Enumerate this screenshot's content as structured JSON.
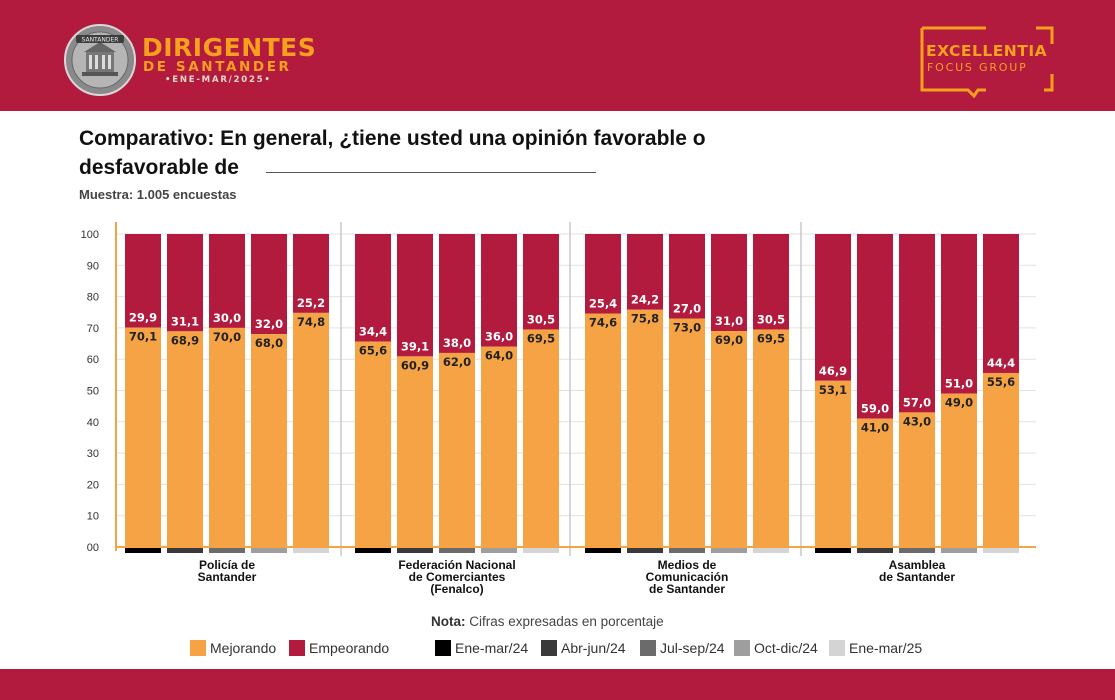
{
  "header": {
    "seal_text": "SANTANDER",
    "brand_line1": "DIRIGENTES",
    "brand_line2": "DE SANTANDER",
    "brand_line3": "•ENE-MAR/2025•",
    "partner_line1": "EXCELLENTIA",
    "partner_line2": "FOCUS GROUP"
  },
  "title": "Comparativo: En general, ¿tiene usted una opinión favorable o desfavorable de",
  "sample": "Muestra: 1.005 encuestas",
  "note_label": "Nota:",
  "note_text": "Cifras expresadas en porcentaje",
  "legend": {
    "mejorando": "Mejorando",
    "empeorando": "Empeorando",
    "periods": [
      "Ene-mar/24",
      "Abr-jun/24",
      "Jul-sep/24",
      "Oct-dic/24",
      "Ene-mar/25"
    ]
  },
  "colors": {
    "mejorando": "#f5a344",
    "empeorando": "#b21b3e",
    "header": "#b21b3e",
    "accent": "#f7a01e",
    "periods": [
      "#000000",
      "#3a3a3a",
      "#6b6b6b",
      "#9e9e9e",
      "#d4d4d4"
    ]
  },
  "chart_data": {
    "type": "bar",
    "stacked": true,
    "ylim": [
      0,
      100
    ],
    "y_ticks": [
      "00",
      "10",
      "20",
      "30",
      "40",
      "50",
      "60",
      "70",
      "80",
      "90",
      "100"
    ],
    "groups": [
      {
        "label": [
          "Policía de",
          "Santander"
        ],
        "mejorando": [
          "70,1",
          "68,9",
          "70,0",
          "68,0",
          "74,8"
        ],
        "empeorando": [
          "29,9",
          "31,1",
          "30,0",
          "32,0",
          "25,2"
        ]
      },
      {
        "label": [
          "Federación Nacional",
          "de Comerciantes",
          "(Fenalco)"
        ],
        "mejorando": [
          "65,6",
          "60,9",
          "62,0",
          "64,0",
          "69,5"
        ],
        "empeorando": [
          "34,4",
          "39,1",
          "38,0",
          "36,0",
          "30,5"
        ]
      },
      {
        "label": [
          "Medios de",
          "Comunicación",
          "de Santander"
        ],
        "mejorando": [
          "74,6",
          "75,8",
          "73,0",
          "69,0",
          "69,5"
        ],
        "empeorando": [
          "25,4",
          "24,2",
          "27,0",
          "31,0",
          "30,5"
        ]
      },
      {
        "label": [
          "Asamblea",
          "de Santander"
        ],
        "mejorando": [
          "53,1",
          "41,0",
          "43,0",
          "49,0",
          "55,6"
        ],
        "empeorando": [
          "46,9",
          "59,0",
          "57,0",
          "51,0",
          "44,4"
        ]
      }
    ]
  }
}
